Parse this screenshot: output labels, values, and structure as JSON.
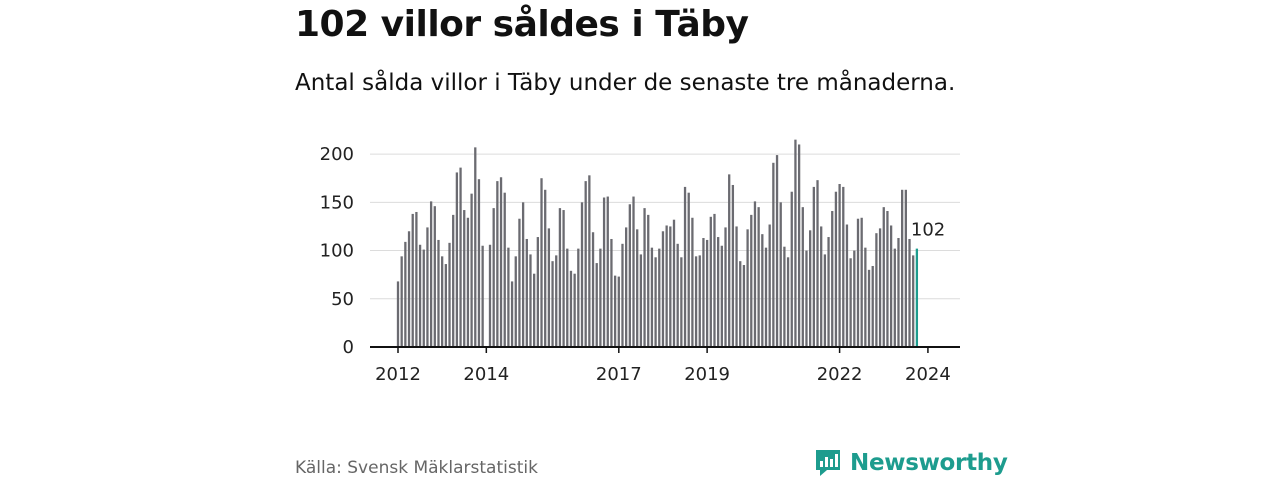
{
  "title": "102 villor såldes i Täby",
  "subtitle": "Antal sålda villor i Täby under de senaste tre månaderna.",
  "source": "Källa: Svensk Mäklarstatistik",
  "brand": {
    "name": "Newsworthy",
    "icon": "bar-chart-speech-bubble-icon"
  },
  "colors": {
    "bar": "#6b6b71",
    "highlight": "#1d9c8e",
    "grid": "#dcdcdc",
    "axis": "#111111"
  },
  "chart_data": {
    "type": "bar",
    "title": "102 villor såldes i Täby",
    "xlabel": "",
    "ylabel": "",
    "ylim": [
      0,
      225
    ],
    "yticks": [
      0,
      50,
      100,
      150,
      200
    ],
    "xtick_labels": [
      "2012",
      "2014",
      "2017",
      "2019",
      "2022",
      "2024"
    ],
    "start": "2012-01",
    "highlight_label": "102",
    "values": [
      68,
      94,
      109,
      120,
      138,
      140,
      106,
      101,
      124,
      151,
      146,
      111,
      94,
      86,
      108,
      137,
      181,
      186,
      142,
      134,
      159,
      207,
      174,
      105,
      0,
      106,
      144,
      172,
      176,
      160,
      103,
      68,
      94,
      133,
      150,
      112,
      96,
      76,
      114,
      175,
      163,
      123,
      89,
      95,
      144,
      142,
      102,
      79,
      76,
      102,
      150,
      172,
      178,
      119,
      87,
      102,
      155,
      156,
      112,
      74,
      73,
      107,
      124,
      148,
      156,
      122,
      96,
      144,
      137,
      103,
      93,
      102,
      120,
      126,
      125,
      132,
      107,
      93,
      166,
      160,
      134,
      94,
      95,
      113,
      111,
      135,
      138,
      114,
      105,
      124,
      179,
      168,
      125,
      89,
      85,
      122,
      137,
      151,
      145,
      117,
      103,
      127,
      191,
      199,
      150,
      104,
      93,
      161,
      215,
      210,
      145,
      100,
      121,
      166,
      173,
      125,
      96,
      114,
      141,
      161,
      169,
      166,
      127,
      92,
      100,
      133,
      134,
      103,
      80,
      84,
      118,
      123,
      145,
      141,
      126,
      102,
      113,
      163,
      163,
      112,
      95,
      102
    ]
  }
}
